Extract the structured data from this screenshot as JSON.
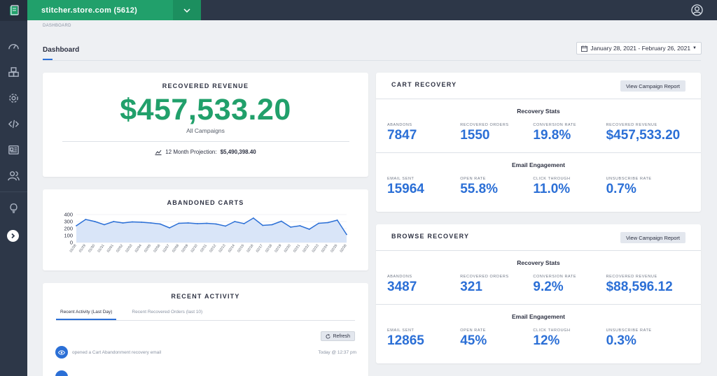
{
  "topbar": {
    "store_label": "stitcher.store.com (5612)"
  },
  "sidebar": {
    "icons": [
      "dashboard-icon",
      "boxes-icon",
      "gear-icon",
      "code-icon",
      "newsletter-icon",
      "users-icon",
      "lightbulb-icon"
    ]
  },
  "breadcrumb": "DASHBOARD",
  "page": {
    "tab_label": "Dashboard",
    "date_range": "January 28, 2021 - February 26, 2021"
  },
  "recovered_revenue": {
    "title": "RECOVERED REVENUE",
    "value": "$457,533.20",
    "subtitle": "All Campaigns",
    "projection_label": "12 Month Projection:",
    "projection_value": "$5,490,398.40"
  },
  "abandoned_carts": {
    "title": "ABANDONED CARTS"
  },
  "chart_data": {
    "type": "area",
    "title": "ABANDONED CARTS",
    "categories": [
      "01/28",
      "01/29",
      "01/30",
      "01/31",
      "02/01",
      "02/02",
      "02/03",
      "02/04",
      "02/05",
      "02/06",
      "02/07",
      "02/08",
      "02/09",
      "02/10",
      "02/11",
      "02/12",
      "02/13",
      "02/14",
      "02/15",
      "02/16",
      "02/17",
      "02/18",
      "02/19",
      "02/20",
      "02/21",
      "02/22",
      "02/23",
      "02/24",
      "02/25",
      "02/26"
    ],
    "values": [
      240,
      330,
      300,
      255,
      300,
      280,
      295,
      290,
      280,
      265,
      210,
      275,
      280,
      270,
      275,
      265,
      235,
      300,
      270,
      350,
      245,
      255,
      305,
      220,
      240,
      190,
      275,
      285,
      320,
      115
    ],
    "yticks": [
      "0",
      "100",
      "200",
      "300",
      "400"
    ],
    "ylim": [
      0,
      400
    ],
    "line_color": "#2b6fd6",
    "fill_color": "#d9e5f8"
  },
  "recent_activity": {
    "title": "RECENT ACTIVITY",
    "tabs": [
      "Recent Activity (Last Day)",
      "Recent Recovered Orders (last 10)"
    ],
    "refresh_label": "Refresh",
    "items": [
      {
        "text": "opened a Cart Abandonment recovery email",
        "time": "Today @ 12:37 pm"
      }
    ]
  },
  "cart_recovery": {
    "title": "CART RECOVERY",
    "report_button": "View Campaign Report",
    "stats_title": "Recovery Stats",
    "stats": [
      {
        "label": "ABANDONS",
        "value": "7847"
      },
      {
        "label": "RECOVERED ORDERS",
        "value": "1550"
      },
      {
        "label": "CONVERSION RATE",
        "value": "19.8%"
      },
      {
        "label": "RECOVERED REVENUE",
        "value": "$457,533.20"
      }
    ],
    "engagement_title": "Email Engagement",
    "engagement": [
      {
        "label": "EMAIL SENT",
        "value": "15964"
      },
      {
        "label": "OPEN RATE",
        "value": "55.8%"
      },
      {
        "label": "CLICK THROUGH",
        "value": "11.0%"
      },
      {
        "label": "UNSUBSCRIBE RATE",
        "value": "0.7%"
      }
    ]
  },
  "browse_recovery": {
    "title": "BROWSE RECOVERY",
    "report_button": "View Campaign Report",
    "stats_title": "Recovery Stats",
    "stats": [
      {
        "label": "ABANDONS",
        "value": "3487"
      },
      {
        "label": "RECOVERED ORDERS",
        "value": "321"
      },
      {
        "label": "CONVERSION RATE",
        "value": "9.2%"
      },
      {
        "label": "RECOVERED REVENUE",
        "value": "$88,596.12"
      }
    ],
    "engagement_title": "Email Engagement",
    "engagement": [
      {
        "label": "EMAIL SENT",
        "value": "12865"
      },
      {
        "label": "OPEN RATE",
        "value": "45%"
      },
      {
        "label": "CLICK THROUGH",
        "value": "12%"
      },
      {
        "label": "UNSUBSCRIBE RATE",
        "value": "0.3%"
      }
    ]
  }
}
